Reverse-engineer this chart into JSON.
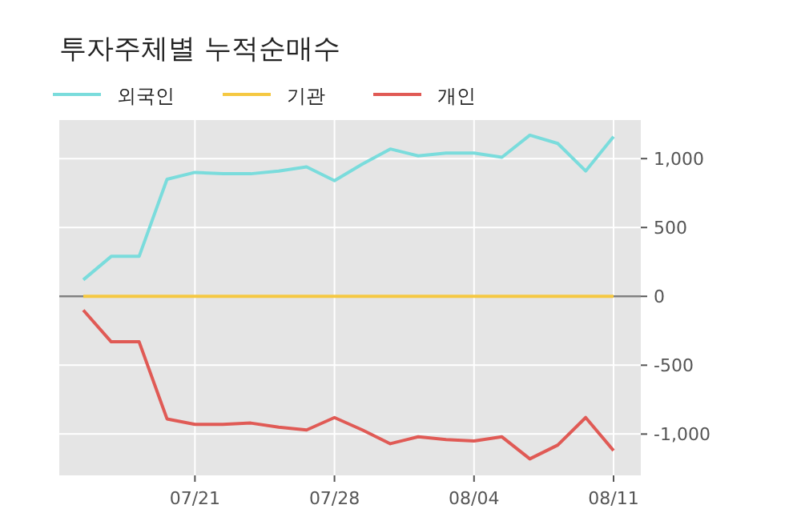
{
  "chart_data": {
    "type": "line",
    "title": "투자주체별 누적순매수",
    "categories": [
      null,
      null,
      null,
      null,
      "07/21",
      null,
      null,
      null,
      null,
      "07/28",
      null,
      null,
      null,
      null,
      "08/04",
      null,
      null,
      null,
      null,
      "08/11"
    ],
    "series": [
      {
        "name": "외국인",
        "color": "#7adcdc",
        "values": [
          120,
          290,
          290,
          850,
          900,
          890,
          890,
          910,
          940,
          840,
          960,
          1070,
          1020,
          1040,
          1040,
          1010,
          1170,
          1110,
          910,
          1160
        ]
      },
      {
        "name": "기관",
        "color": "#f5c842",
        "values": [
          0,
          0,
          0,
          0,
          0,
          0,
          0,
          0,
          0,
          0,
          0,
          0,
          0,
          0,
          0,
          0,
          0,
          0,
          0,
          0
        ]
      },
      {
        "name": "개인",
        "color": "#e05a55",
        "values": [
          -100,
          -330,
          -330,
          -890,
          -930,
          -930,
          -920,
          -950,
          -970,
          -880,
          -970,
          -1070,
          -1020,
          -1040,
          -1050,
          -1020,
          -1180,
          -1080,
          -880,
          -1120
        ]
      }
    ],
    "ylim": [
      -1300,
      1280
    ],
    "yticks": [
      {
        "value": -1000,
        "label": "-1,000"
      },
      -500,
      0,
      500,
      {
        "value": 1000,
        "label": "1,000"
      }
    ],
    "ref_lines": [
      {
        "axis": "y",
        "value": 0,
        "color": "#808080"
      }
    ],
    "grid": true,
    "legend": "top left",
    "marker": "none",
    "line_style": "solid"
  }
}
